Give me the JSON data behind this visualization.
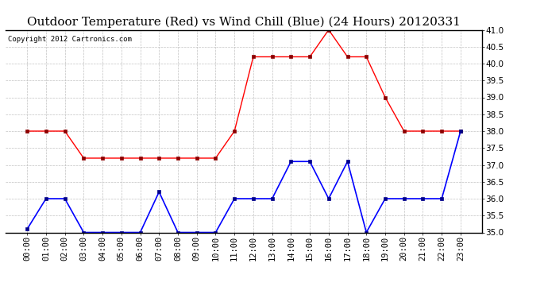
{
  "title": "Outdoor Temperature (Red) vs Wind Chill (Blue) (24 Hours) 20120331",
  "copyright": "Copyright 2012 Cartronics.com",
  "hours": [
    "00:00",
    "01:00",
    "02:00",
    "03:00",
    "04:00",
    "05:00",
    "06:00",
    "07:00",
    "08:00",
    "09:00",
    "10:00",
    "11:00",
    "12:00",
    "13:00",
    "14:00",
    "15:00",
    "16:00",
    "17:00",
    "18:00",
    "19:00",
    "20:00",
    "21:00",
    "22:00",
    "23:00"
  ],
  "red": [
    38.0,
    38.0,
    38.0,
    37.2,
    37.2,
    37.2,
    37.2,
    37.2,
    37.2,
    37.2,
    37.2,
    38.0,
    40.2,
    40.2,
    40.2,
    40.2,
    41.0,
    40.2,
    40.2,
    39.0,
    38.0,
    38.0,
    38.0,
    38.0
  ],
  "blue": [
    35.1,
    36.0,
    36.0,
    35.0,
    35.0,
    35.0,
    35.0,
    36.2,
    35.0,
    35.0,
    35.0,
    36.0,
    36.0,
    36.0,
    37.1,
    37.1,
    36.0,
    37.1,
    35.0,
    36.0,
    36.0,
    36.0,
    36.0,
    38.0
  ],
  "ylim": [
    35.0,
    41.0
  ],
  "yticks": [
    35.0,
    35.5,
    36.0,
    36.5,
    37.0,
    37.5,
    38.0,
    38.5,
    39.0,
    39.5,
    40.0,
    40.5,
    41.0
  ],
  "bg_color": "#ffffff",
  "grid_color": "#bbbbbb",
  "title_fontsize": 11,
  "copyright_fontsize": 6.5,
  "tick_fontsize": 7.5
}
